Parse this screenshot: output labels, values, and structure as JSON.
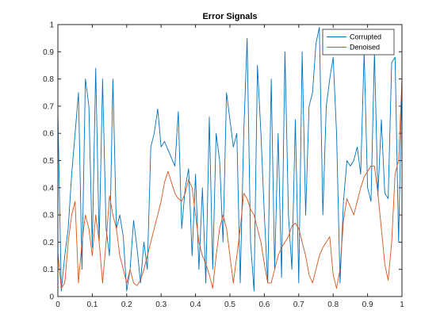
{
  "chart_data": {
    "type": "line",
    "title": "Error Signals",
    "xlabel": "",
    "ylabel": "",
    "xlim": [
      0,
      1
    ],
    "ylim": [
      0,
      1
    ],
    "grid": false,
    "legend_position": "top-right",
    "x_ticks": [
      "0",
      "0.1",
      "0.2",
      "0.3",
      "0.4",
      "0.5",
      "0.6",
      "0.7",
      "0.8",
      "0.9",
      "1"
    ],
    "y_ticks": [
      "0",
      "0.1",
      "0.2",
      "0.3",
      "0.4",
      "0.5",
      "0.6",
      "0.7",
      "0.8",
      "0.9",
      "1"
    ],
    "series": [
      {
        "name": "Corrupted",
        "color": "#0072bd",
        "x": [
          0,
          0.01,
          0.02,
          0.03,
          0.04,
          0.05,
          0.06,
          0.07,
          0.08,
          0.09,
          0.1,
          0.11,
          0.12,
          0.13,
          0.14,
          0.15,
          0.16,
          0.17,
          0.18,
          0.19,
          0.2,
          0.21,
          0.22,
          0.23,
          0.24,
          0.25,
          0.26,
          0.27,
          0.28,
          0.29,
          0.3,
          0.31,
          0.32,
          0.33,
          0.34,
          0.35,
          0.36,
          0.37,
          0.38,
          0.39,
          0.4,
          0.41,
          0.42,
          0.43,
          0.44,
          0.45,
          0.46,
          0.47,
          0.48,
          0.49,
          0.5,
          0.51,
          0.52,
          0.53,
          0.54,
          0.55,
          0.56,
          0.57,
          0.58,
          0.59,
          0.6,
          0.61,
          0.62,
          0.63,
          0.64,
          0.65,
          0.66,
          0.67,
          0.68,
          0.69,
          0.7,
          0.71,
          0.72,
          0.73,
          0.74,
          0.75,
          0.76,
          0.77,
          0.78,
          0.79,
          0.8,
          0.81,
          0.82,
          0.83,
          0.84,
          0.85,
          0.86,
          0.87,
          0.88,
          0.89,
          0.9,
          0.91,
          0.92,
          0.93,
          0.94,
          0.95,
          0.96,
          0.97,
          0.98,
          0.99,
          1.0
        ],
        "y": [
          0.68,
          0.02,
          0.15,
          0.25,
          0.45,
          0.6,
          0.75,
          0.1,
          0.8,
          0.7,
          0.18,
          0.84,
          0.2,
          0.8,
          0.25,
          0.15,
          0.8,
          0.25,
          0.3,
          0.22,
          0.02,
          0.1,
          0.28,
          0.18,
          0.05,
          0.2,
          0.1,
          0.55,
          0.6,
          0.69,
          0.55,
          0.57,
          0.54,
          0.51,
          0.48,
          0.68,
          0.25,
          0.4,
          0.47,
          0.15,
          0.45,
          0.1,
          0.4,
          0.05,
          0.66,
          0.1,
          0.6,
          0.5,
          0.2,
          0.75,
          0.65,
          0.55,
          0.6,
          0.05,
          0.6,
          0.95,
          0.2,
          0.02,
          0.85,
          0.6,
          0.3,
          0.05,
          0.8,
          0.1,
          0.6,
          0.07,
          0.9,
          0.3,
          0.1,
          0.65,
          0.05,
          0.9,
          0.3,
          0.7,
          0.75,
          0.93,
          0.99,
          0.3,
          0.7,
          0.8,
          0.88,
          0.6,
          0.05,
          0.35,
          0.5,
          0.48,
          0.5,
          0.55,
          0.45,
          0.9,
          0.4,
          0.35,
          0.9,
          0.37,
          0.65,
          0.38,
          0.36,
          0.86,
          0.88,
          0.2,
          0.8
        ]
      },
      {
        "name": "Denoised",
        "color": "#d95319",
        "x": [
          0,
          0.01,
          0.02,
          0.03,
          0.04,
          0.05,
          0.06,
          0.07,
          0.08,
          0.09,
          0.1,
          0.11,
          0.12,
          0.13,
          0.14,
          0.15,
          0.16,
          0.17,
          0.18,
          0.19,
          0.2,
          0.21,
          0.22,
          0.23,
          0.24,
          0.25,
          0.26,
          0.27,
          0.28,
          0.29,
          0.3,
          0.31,
          0.32,
          0.33,
          0.34,
          0.35,
          0.36,
          0.37,
          0.38,
          0.39,
          0.4,
          0.41,
          0.42,
          0.43,
          0.44,
          0.45,
          0.46,
          0.47,
          0.48,
          0.49,
          0.5,
          0.51,
          0.52,
          0.53,
          0.54,
          0.55,
          0.56,
          0.57,
          0.58,
          0.59,
          0.6,
          0.61,
          0.62,
          0.63,
          0.64,
          0.65,
          0.66,
          0.67,
          0.68,
          0.69,
          0.7,
          0.71,
          0.72,
          0.73,
          0.74,
          0.75,
          0.76,
          0.77,
          0.78,
          0.79,
          0.8,
          0.81,
          0.82,
          0.83,
          0.84,
          0.85,
          0.86,
          0.87,
          0.88,
          0.89,
          0.9,
          0.91,
          0.92,
          0.93,
          0.94,
          0.95,
          0.96,
          0.97,
          0.98,
          0.99,
          1.0
        ],
        "y": [
          0.16,
          0.03,
          0.05,
          0.2,
          0.3,
          0.35,
          0.05,
          0.2,
          0.3,
          0.25,
          0.15,
          0.3,
          0.2,
          0.05,
          0.2,
          0.37,
          0.3,
          0.25,
          0.15,
          0.1,
          0.05,
          0.1,
          0.05,
          0.04,
          0.06,
          0.1,
          0.15,
          0.2,
          0.25,
          0.3,
          0.35,
          0.42,
          0.46,
          0.42,
          0.38,
          0.36,
          0.35,
          0.38,
          0.43,
          0.4,
          0.3,
          0.2,
          0.15,
          0.12,
          0.08,
          0.03,
          0.15,
          0.25,
          0.3,
          0.25,
          0.15,
          0.05,
          0.15,
          0.25,
          0.38,
          0.36,
          0.32,
          0.3,
          0.25,
          0.2,
          0.12,
          0.05,
          0.05,
          0.1,
          0.15,
          0.18,
          0.2,
          0.22,
          0.26,
          0.27,
          0.25,
          0.2,
          0.15,
          0.08,
          0.05,
          0.1,
          0.15,
          0.18,
          0.2,
          0.22,
          0.08,
          0.03,
          0.1,
          0.28,
          0.36,
          0.33,
          0.3,
          0.35,
          0.4,
          0.44,
          0.46,
          0.48,
          0.48,
          0.38,
          0.25,
          0.12,
          0.06,
          0.2,
          0.45,
          0.5,
          0.8
        ]
      }
    ]
  }
}
